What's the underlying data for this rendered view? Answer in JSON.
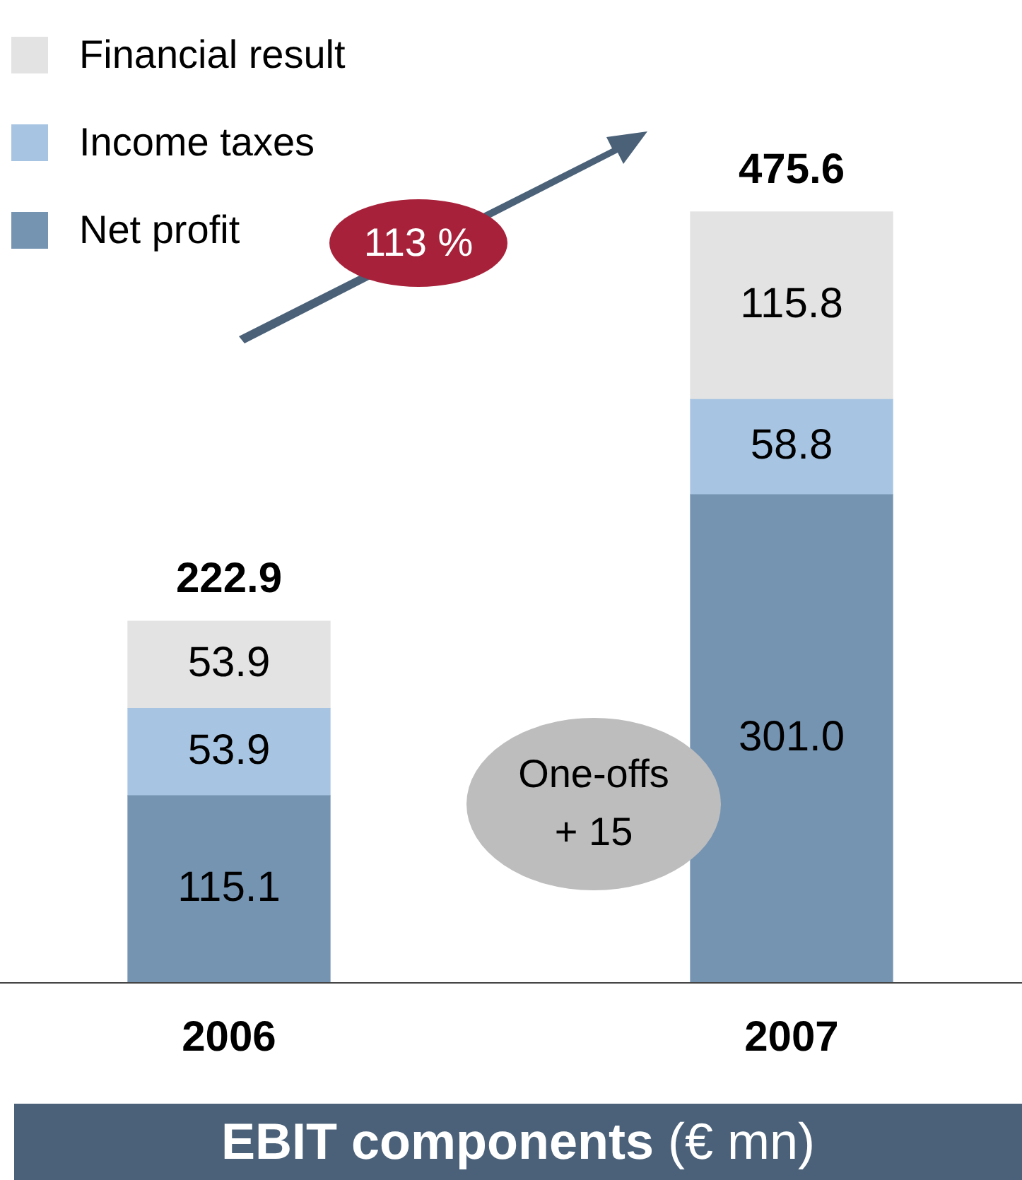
{
  "chart_data": {
    "type": "bar",
    "title": "EBIT components",
    "subtitle": "(€ mn)",
    "categories": [
      "2006",
      "2007"
    ],
    "stacked": true,
    "legend": "top left",
    "tick_labels": "x",
    "series": [
      {
        "name": "Net profit",
        "color": "#7594b2",
        "values": [
          115.1,
          301.0
        ],
        "value_labels": [
          "115.1",
          "301.0"
        ]
      },
      {
        "name": "Income taxes",
        "color": "#a7c5e2",
        "values": [
          53.9,
          58.8
        ],
        "value_labels": [
          "53.9",
          "58.8"
        ]
      },
      {
        "name": "Financial result",
        "color": "#e3e3e3",
        "values": [
          53.9,
          115.8
        ],
        "value_labels": [
          "53.9",
          "115.8"
        ]
      }
    ],
    "totals": [
      "222.9",
      "475.6"
    ],
    "annotations": [
      "113 %",
      "One-offs\n+ 15"
    ]
  }
}
